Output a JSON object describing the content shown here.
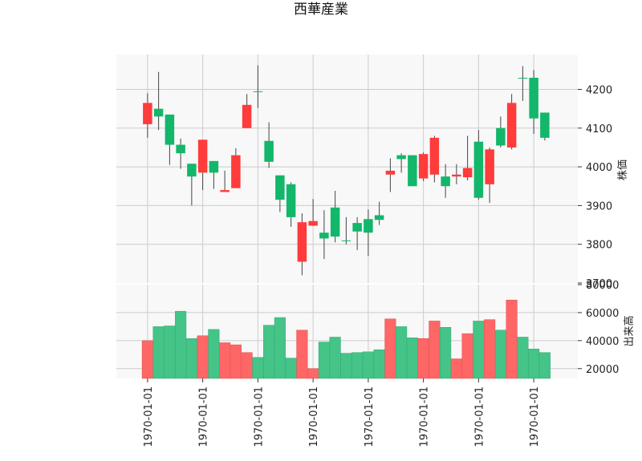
{
  "chart_data": {
    "type": "candlestick",
    "title": "西華産業",
    "ylabel": "株価",
    "volume_label": "出来高",
    "price_ylim": [
      3700,
      4290
    ],
    "price_yticks": [
      3700,
      3800,
      3900,
      4000,
      4100,
      4200
    ],
    "volume_ylim": [
      13000,
      80000
    ],
    "volume_yticks": [
      20000,
      40000,
      60000,
      80000
    ],
    "x_tick_label": "1970-01-01",
    "x_tick_positions": [
      0.5,
      5.5,
      10.5,
      15.5,
      20.5,
      25.5,
      30.5,
      35.5
    ],
    "grid": true,
    "colors": {
      "up": "#ff3b3b",
      "down": "#12b76a",
      "up_vol": "#ff6666",
      "down_vol": "#45c488",
      "wick": "#444444",
      "panel_bg": "#f8f8f8",
      "grid": "#cccccc"
    },
    "candles": [
      {
        "open": 4110,
        "close": 4165,
        "high": 4190,
        "low": 4075,
        "volume": 40000
      },
      {
        "open": 4150,
        "close": 4130,
        "high": 4245,
        "low": 4095,
        "volume": 50000
      },
      {
        "open": 4135,
        "close": 4057,
        "high": 4135,
        "low": 4005,
        "volume": 50500
      },
      {
        "open": 4057,
        "close": 4035,
        "high": 4073,
        "low": 3995,
        "volume": 61000
      },
      {
        "open": 4008,
        "close": 3975,
        "high": 4008,
        "low": 3900,
        "volume": 41500
      },
      {
        "open": 3985,
        "close": 4070,
        "high": 4070,
        "low": 3940,
        "volume": 43500
      },
      {
        "open": 4015,
        "close": 3985,
        "high": 4015,
        "low": 3943,
        "volume": 48000
      },
      {
        "open": 3935,
        "close": 3940,
        "high": 3990,
        "low": 3935,
        "volume": 38500
      },
      {
        "open": 3945,
        "close": 4030,
        "high": 4048,
        "low": 3945,
        "volume": 37000
      },
      {
        "open": 4100,
        "close": 4160,
        "high": 4188,
        "low": 4100,
        "volume": 31500
      },
      {
        "open": 4195,
        "close": 4193,
        "high": 4262,
        "low": 4152,
        "volume": 28000
      },
      {
        "open": 4067,
        "close": 4013,
        "high": 4115,
        "low": 3997,
        "volume": 51000
      },
      {
        "open": 3978,
        "close": 3915,
        "high": 3978,
        "low": 3883,
        "volume": 56500
      },
      {
        "open": 3955,
        "close": 3870,
        "high": 3960,
        "low": 3845,
        "volume": 27500
      },
      {
        "open": 3755,
        "close": 3857,
        "high": 3880,
        "low": 3720,
        "volume": 47500
      },
      {
        "open": 3848,
        "close": 3860,
        "high": 3917,
        "low": 3848,
        "volume": 20000
      },
      {
        "open": 3830,
        "close": 3815,
        "high": 3888,
        "low": 3762,
        "volume": 39000
      },
      {
        "open": 3895,
        "close": 3820,
        "high": 3938,
        "low": 3805,
        "volume": 42500
      },
      {
        "open": 3810,
        "close": 3808,
        "high": 3870,
        "low": 3800,
        "volume": 31000
      },
      {
        "open": 3855,
        "close": 3833,
        "high": 3870,
        "low": 3785,
        "volume": 31500
      },
      {
        "open": 3865,
        "close": 3830,
        "high": 3890,
        "low": 3770,
        "volume": 32000
      },
      {
        "open": 3875,
        "close": 3863,
        "high": 3910,
        "low": 3850,
        "volume": 33500
      },
      {
        "open": 3980,
        "close": 3990,
        "high": 4022,
        "low": 3935,
        "volume": 55500
      },
      {
        "open": 4030,
        "close": 4020,
        "high": 4035,
        "low": 3985,
        "volume": 50000
      },
      {
        "open": 4030,
        "close": 3950,
        "high": 4030,
        "low": 3950,
        "volume": 42000
      },
      {
        "open": 3970,
        "close": 4033,
        "high": 4037,
        "low": 3963,
        "volume": 41500
      },
      {
        "open": 3980,
        "close": 4075,
        "high": 4080,
        "low": 3960,
        "volume": 54000
      },
      {
        "open": 3975,
        "close": 3950,
        "high": 4007,
        "low": 3920,
        "volume": 49500
      },
      {
        "open": 3975,
        "close": 3980,
        "high": 4007,
        "low": 3955,
        "volume": 27000
      },
      {
        "open": 3973,
        "close": 3997,
        "high": 4080,
        "low": 3965,
        "volume": 45000
      },
      {
        "open": 4065,
        "close": 3920,
        "high": 4095,
        "low": 3915,
        "volume": 54000
      },
      {
        "open": 3955,
        "close": 4045,
        "high": 4050,
        "low": 3907,
        "volume": 55000
      },
      {
        "open": 4100,
        "close": 4055,
        "high": 4130,
        "low": 4050,
        "volume": 47500
      },
      {
        "open": 4050,
        "close": 4165,
        "high": 4188,
        "low": 4045,
        "volume": 69000
      },
      {
        "open": 4230,
        "close": 4228,
        "high": 4260,
        "low": 4170,
        "volume": 42500
      },
      {
        "open": 4230,
        "close": 4125,
        "high": 4250,
        "low": 4085,
        "volume": 34000
      },
      {
        "open": 4140,
        "close": 4075,
        "high": 4140,
        "low": 4068,
        "volume": 31500
      }
    ]
  }
}
